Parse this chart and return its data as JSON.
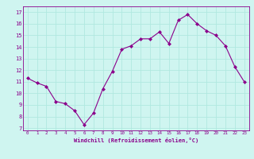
{
  "x": [
    0,
    1,
    2,
    3,
    4,
    5,
    6,
    7,
    8,
    9,
    10,
    11,
    12,
    13,
    14,
    15,
    16,
    17,
    18,
    19,
    20,
    21,
    22,
    23
  ],
  "y": [
    11.3,
    10.9,
    10.6,
    9.3,
    9.1,
    8.5,
    7.3,
    8.3,
    10.4,
    11.9,
    13.8,
    14.1,
    14.7,
    14.7,
    15.3,
    14.3,
    16.3,
    16.8,
    16.0,
    15.4,
    15.0,
    14.1,
    12.3,
    11.0
  ],
  "line_color": "#8B008B",
  "marker": "D",
  "marker_size": 2.0,
  "bg_color": "#cff5f0",
  "grid_color": "#b0e8e0",
  "xlabel": "Windchill (Refroidissement éolien,°C)",
  "xlabel_color": "#8B008B",
  "yticks": [
    7,
    8,
    9,
    10,
    11,
    12,
    13,
    14,
    15,
    16,
    17
  ],
  "xticks": [
    0,
    1,
    2,
    3,
    4,
    5,
    6,
    7,
    8,
    9,
    10,
    11,
    12,
    13,
    14,
    15,
    16,
    17,
    18,
    19,
    20,
    21,
    22,
    23
  ],
  "ylim": [
    6.8,
    17.5
  ],
  "xlim": [
    -0.5,
    23.5
  ]
}
